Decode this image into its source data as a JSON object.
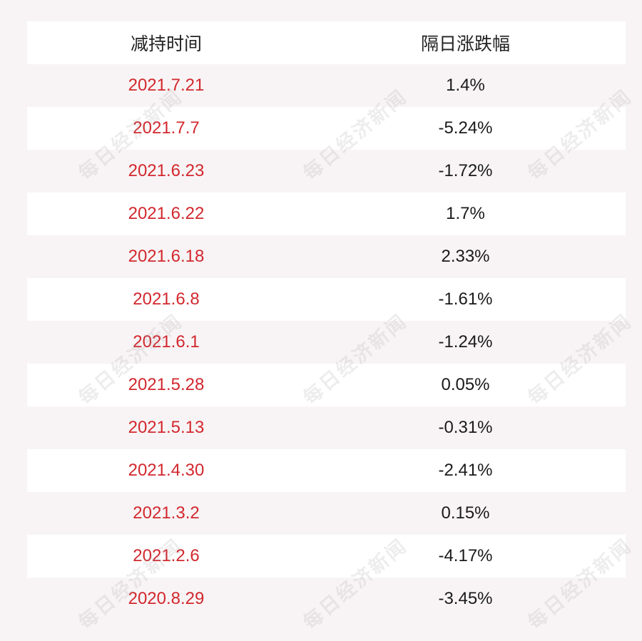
{
  "table": {
    "headers": [
      "减持时间",
      "隔日涨跌幅"
    ],
    "rows": [
      {
        "date": "2021.7.21",
        "change": "1.4%"
      },
      {
        "date": "2021.7.7",
        "change": "-5.24%"
      },
      {
        "date": "2021.6.23",
        "change": "-1.72%"
      },
      {
        "date": "2021.6.22",
        "change": "1.7%"
      },
      {
        "date": "2021.6.18",
        "change": "2.33%"
      },
      {
        "date": "2021.6.8",
        "change": "-1.61%"
      },
      {
        "date": "2021.6.1",
        "change": "-1.24%"
      },
      {
        "date": "2021.5.28",
        "change": "0.05%"
      },
      {
        "date": "2021.5.13",
        "change": "-0.31%"
      },
      {
        "date": "2021.4.30",
        "change": "-2.41%"
      },
      {
        "date": "2021.3.2",
        "change": "0.15%"
      },
      {
        "date": "2021.2.6",
        "change": "-4.17%"
      },
      {
        "date": "2020.8.29",
        "change": "-3.45%"
      }
    ]
  },
  "watermark": {
    "text": "每日经济新闻"
  },
  "colors": {
    "date_text": "#d2282e",
    "background": "#f8f4f5",
    "row_alt": "#ffffff"
  }
}
